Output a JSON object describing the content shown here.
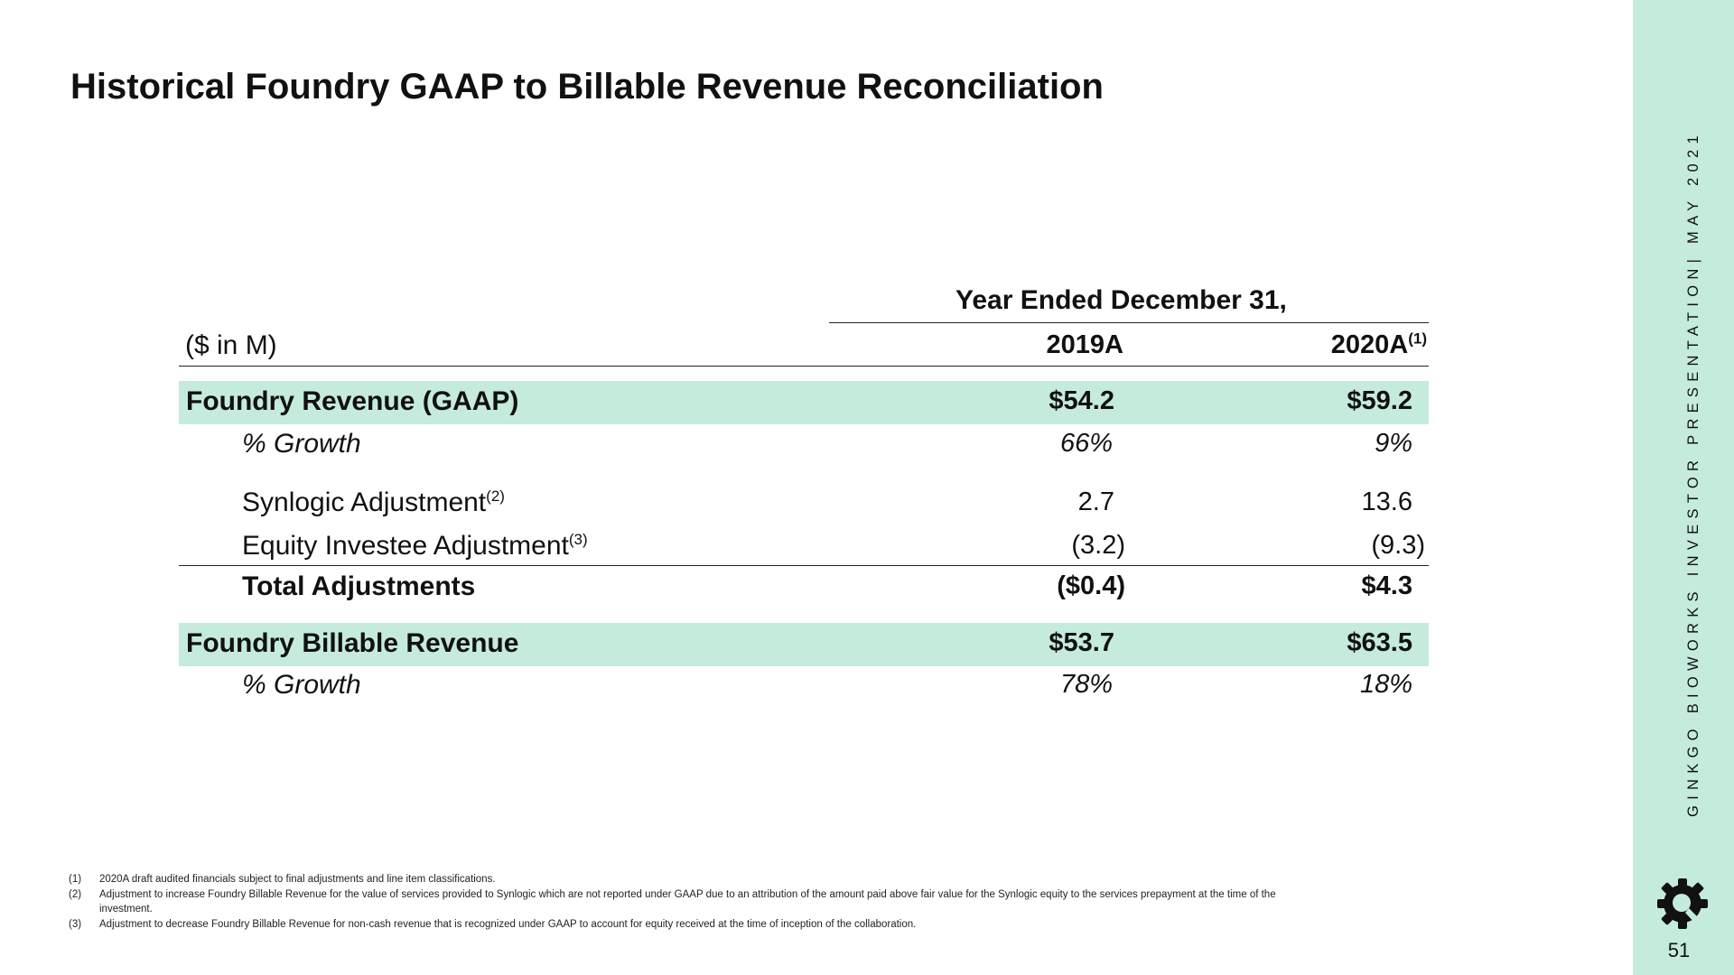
{
  "title": "Historical Foundry GAAP to Billable Revenue Reconciliation",
  "table": {
    "period_header": "Year Ended December 31,",
    "unit_label": "($ in M)",
    "columns": [
      {
        "label": "2019A",
        "note": ""
      },
      {
        "label": "2020A",
        "note": "(1)"
      }
    ],
    "rows": {
      "foundry_revenue": {
        "label": "Foundry Revenue (GAAP)",
        "values": [
          "$54.2",
          "$59.2"
        ]
      },
      "growth_1": {
        "label": "% Growth",
        "values": [
          "66%",
          "9%"
        ]
      },
      "synlogic": {
        "label": "Synlogic Adjustment",
        "note": "(2)",
        "values": [
          "2.7",
          "13.6"
        ]
      },
      "equity": {
        "label": "Equity Investee Adjustment",
        "note": "(3)",
        "values": [
          "(3.2)",
          "(9.3)"
        ]
      },
      "total_adjustments": {
        "label": "Total Adjustments",
        "values": [
          "($0.4)",
          "$4.3"
        ]
      },
      "billable_revenue": {
        "label": "Foundry Billable Revenue",
        "values": [
          "$53.7",
          "$63.5"
        ]
      },
      "growth_2": {
        "label": "% Growth",
        "values": [
          "78%",
          "18%"
        ]
      }
    },
    "highlight_color": "#c5ebdd"
  },
  "footnotes": [
    {
      "marker": "(1)",
      "text": "2020A draft audited financials subject to final adjustments and line item classifications."
    },
    {
      "marker": "(2)",
      "text": "Adjustment to increase Foundry Billable Revenue for the value of services provided to Synlogic which are not reported under GAAP due to an attribution of the amount paid above fair value for the Synlogic equity to the services prepayment at the time of the investment."
    },
    {
      "marker": "(3)",
      "text": "Adjustment to decrease Foundry Billable Revenue for non-cash revenue that is recognized under GAAP to account for equity received at the time of inception of the collaboration."
    }
  ],
  "sidebar": {
    "text": "GINKGO BIOWORKS   INVESTOR PRESENTATION| MAY 2021",
    "page_number": "51",
    "logo_icon": "ginkgo-gear-logo-icon",
    "background": "#c5ebdd"
  }
}
